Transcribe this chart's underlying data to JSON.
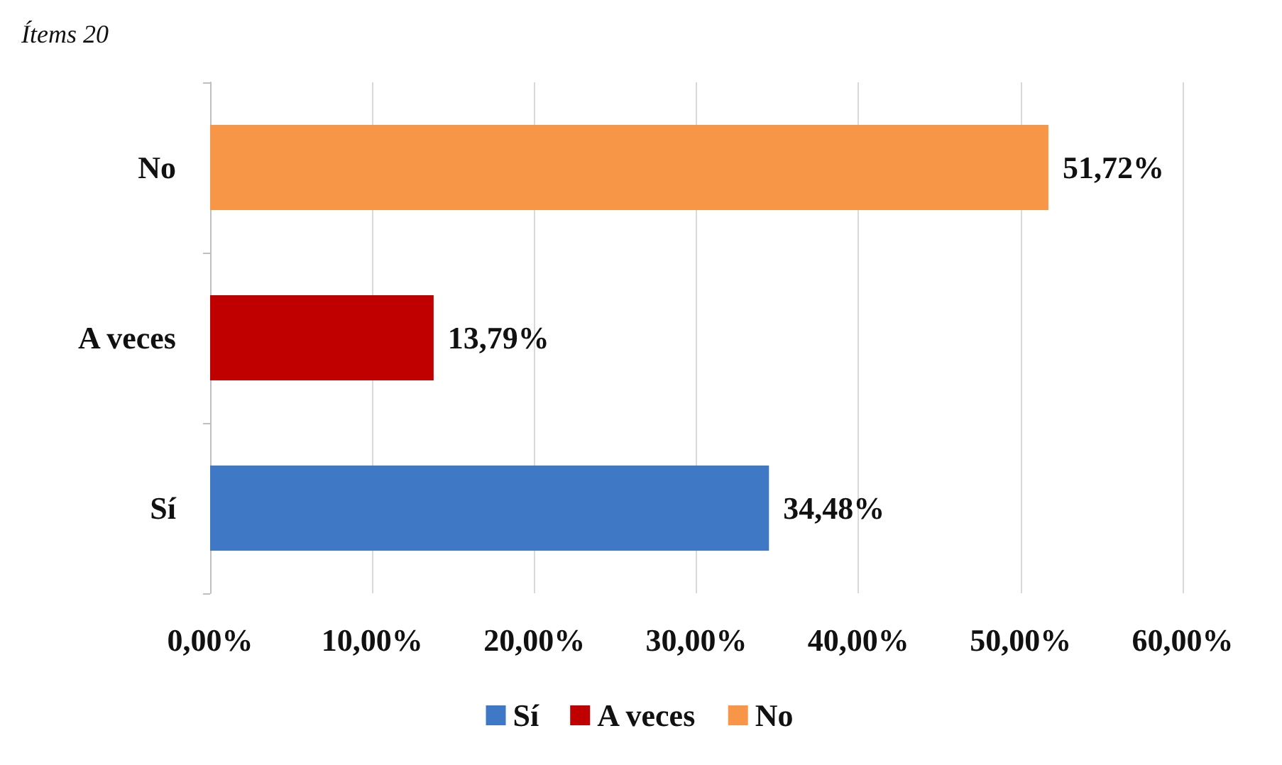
{
  "chart_data": {
    "type": "bar",
    "title": "Ítems 20",
    "orientation": "horizontal",
    "stacked": true,
    "categories": [
      "No",
      "A veces",
      "Sí"
    ],
    "series": [
      {
        "name": "Sí",
        "color": "#3f78c4",
        "values": [
          null,
          null,
          34.48
        ],
        "value_labels": [
          null,
          null,
          "34,48%"
        ]
      },
      {
        "name": "A veces",
        "color": "#c00000",
        "values": [
          null,
          13.79,
          null
        ],
        "value_labels": [
          null,
          "13,79%",
          null
        ]
      },
      {
        "name": "No",
        "color": "#f79646",
        "values": [
          51.72,
          null,
          null
        ],
        "value_labels": [
          "51,72%",
          null,
          null
        ]
      }
    ],
    "xlim": [
      0,
      60
    ],
    "xticks": [
      {
        "value": 0,
        "label": "0,00%"
      },
      {
        "value": 10,
        "label": "10,00%"
      },
      {
        "value": 20,
        "label": "20,00%"
      },
      {
        "value": 30,
        "label": "30,00%"
      },
      {
        "value": 40,
        "label": "40,00%"
      },
      {
        "value": 50,
        "label": "50,00%"
      },
      {
        "value": 60,
        "label": "60,00%"
      }
    ],
    "grid": "x",
    "legend": "bottom"
  }
}
